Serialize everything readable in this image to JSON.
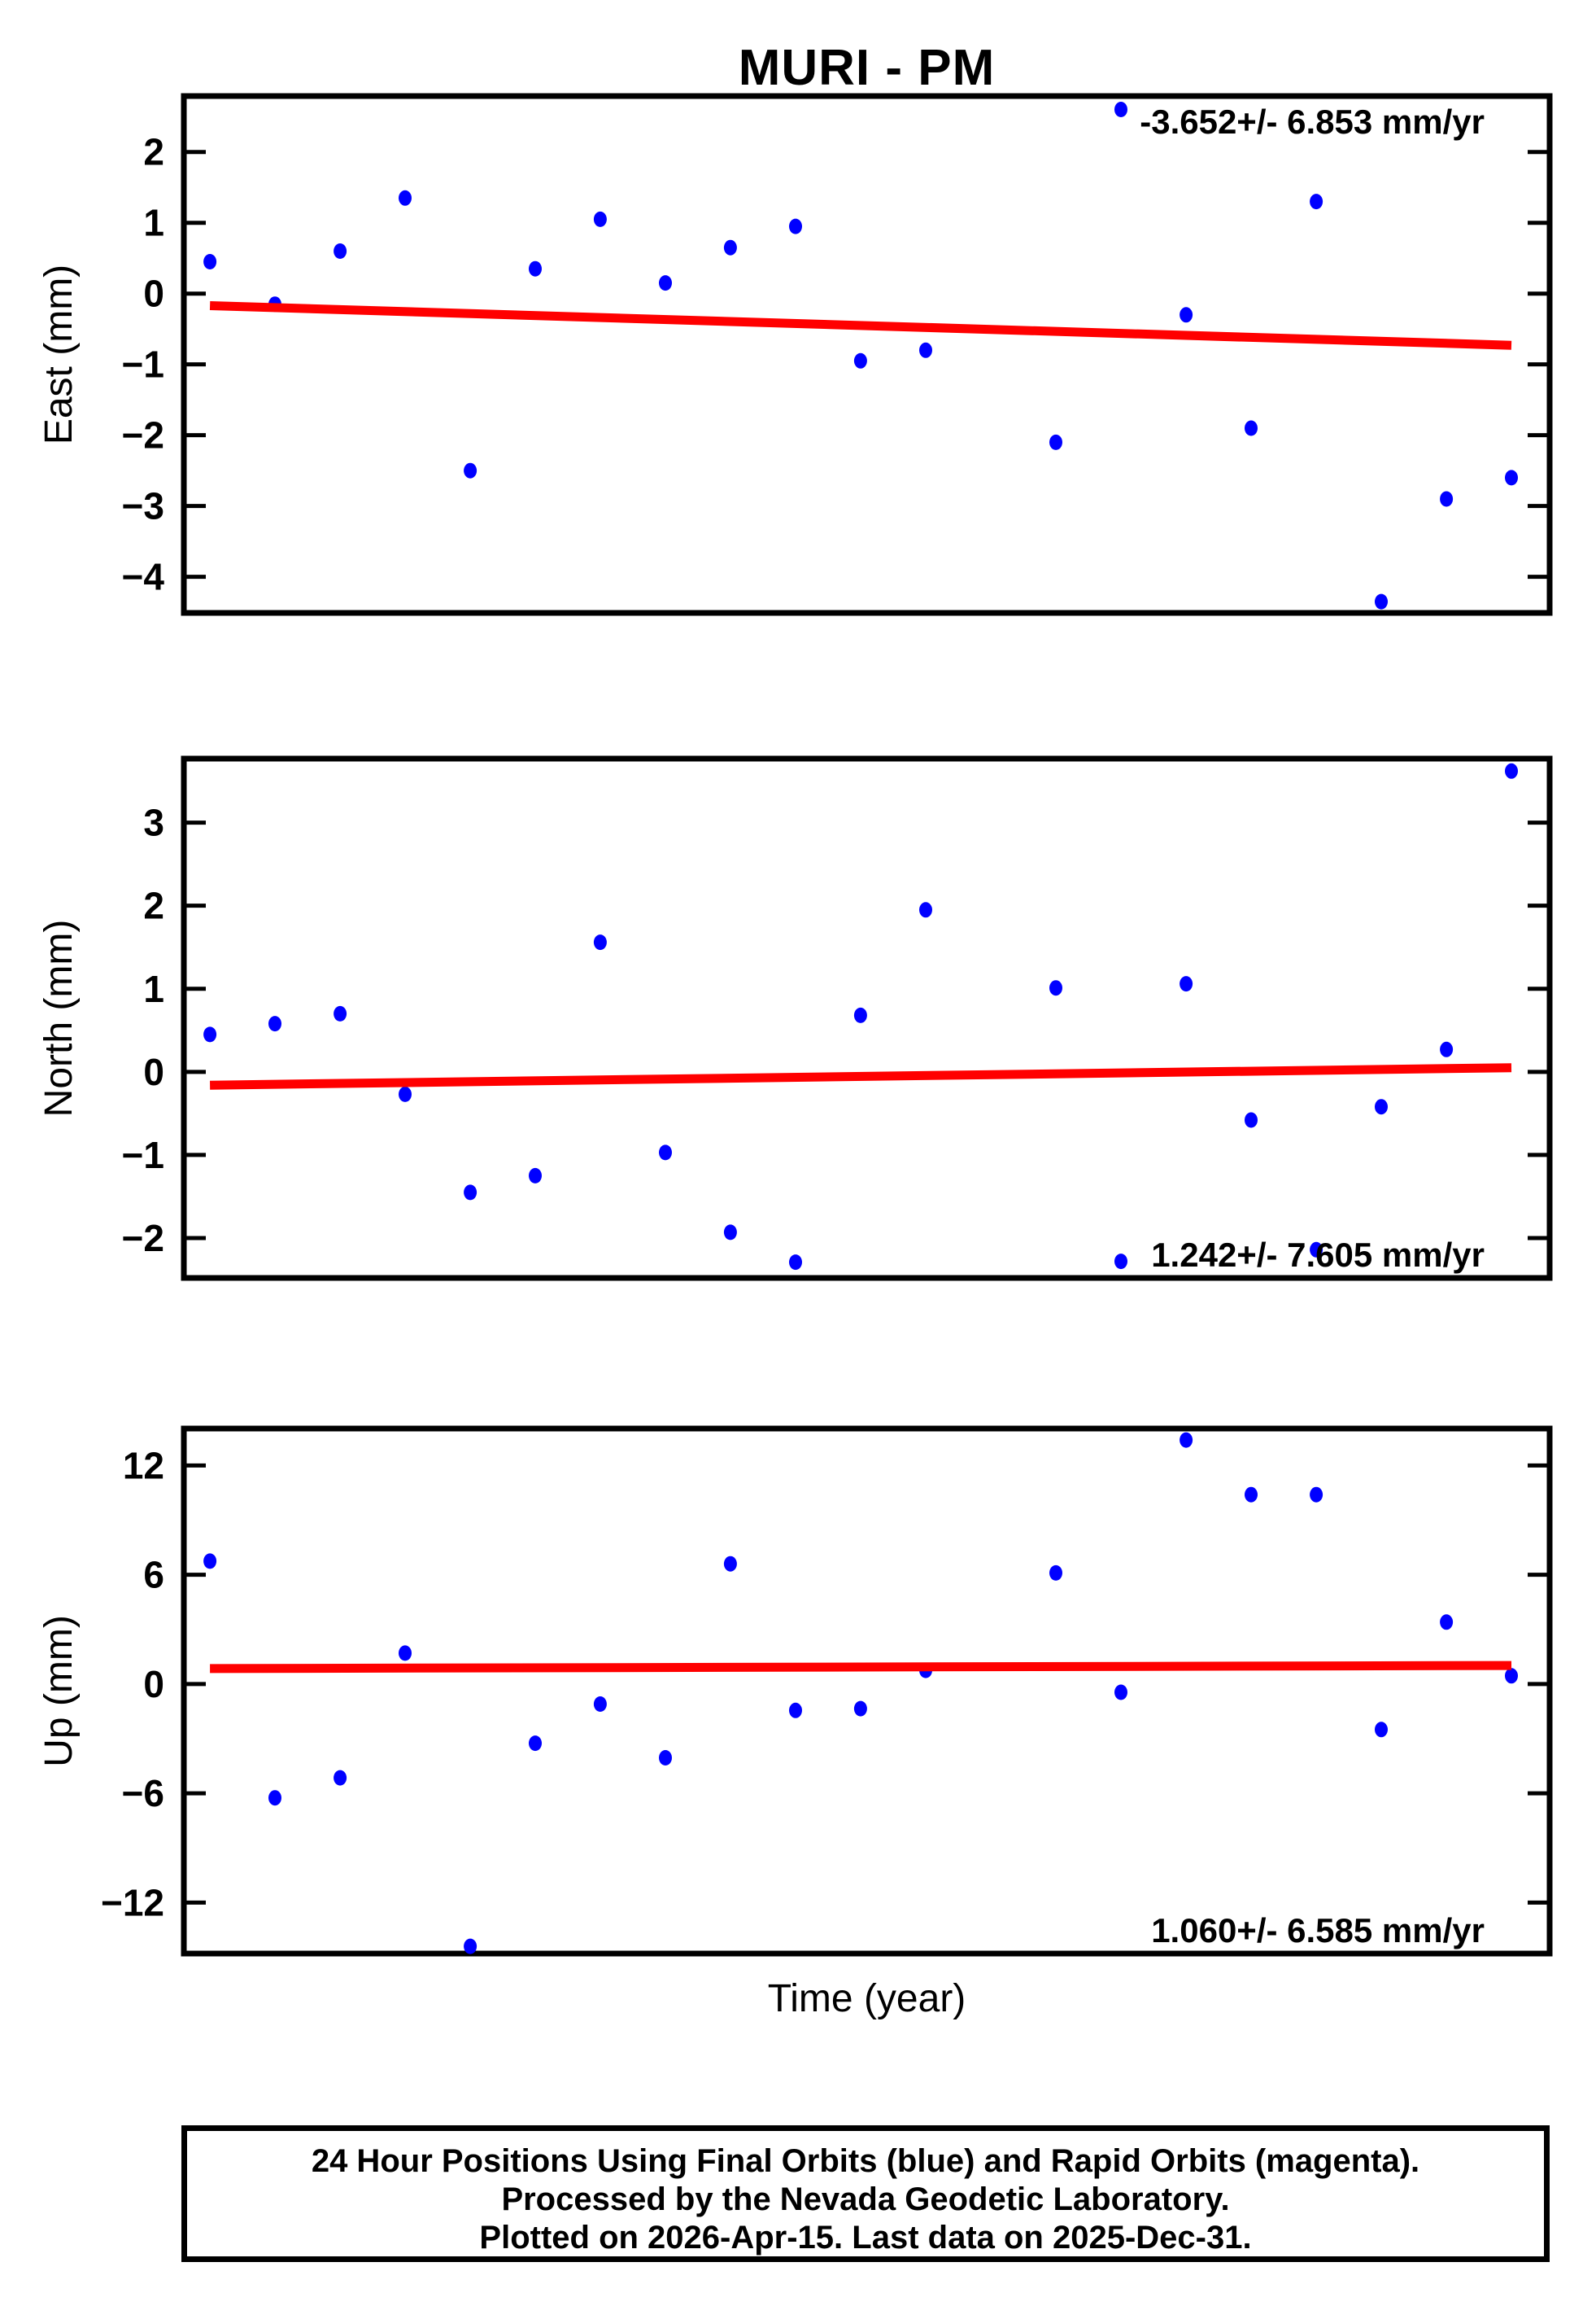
{
  "title": "MURI - PM",
  "xlabel": "Time (year)",
  "footer": {
    "line1": "24 Hour Positions Using Final Orbits (blue) and Rapid Orbits (magenta).",
    "line2": "Processed by the Nevada Geodetic Laboratory.",
    "line3": "Plotted on 2026-Apr-15. Last data on 2025-Dec-31."
  },
  "colors": {
    "point": "#0000ff",
    "trend": "#ff0000",
    "frame": "#000000"
  },
  "chart_data": [
    {
      "type": "scatter",
      "ylabel": "East (mm)",
      "annotation": "-3.652+/- 6.853 mm/yr",
      "annotation_pos": "top-right",
      "ylim": [
        -4.51,
        2.79
      ],
      "grid": false,
      "yticks": [
        {
          "v": 2,
          "label": "2"
        },
        {
          "v": 1,
          "label": "1"
        },
        {
          "v": 0,
          "label": "0"
        },
        {
          "v": -1,
          "label": "−1"
        },
        {
          "v": -2,
          "label": "−2"
        },
        {
          "v": -3,
          "label": "−3"
        },
        {
          "v": -4,
          "label": "−4"
        }
      ],
      "points": [
        [
          0.0191,
          0.45
        ],
        [
          0.0667,
          -0.15
        ],
        [
          0.1144,
          0.6
        ],
        [
          0.162,
          1.35
        ],
        [
          0.2097,
          -2.5
        ],
        [
          0.2573,
          0.35
        ],
        [
          0.3049,
          1.05
        ],
        [
          0.3526,
          0.15
        ],
        [
          0.4002,
          0.65
        ],
        [
          0.4479,
          0.95
        ],
        [
          0.4955,
          -0.95
        ],
        [
          0.5432,
          -0.8
        ],
        [
          0.6385,
          -2.1
        ],
        [
          0.6861,
          2.6
        ],
        [
          0.7338,
          -0.3
        ],
        [
          0.7814,
          -1.9
        ],
        [
          0.8291,
          1.3
        ],
        [
          0.8767,
          -4.35
        ],
        [
          0.9244,
          -2.9
        ],
        [
          0.972,
          -2.6
        ]
      ],
      "trend": [
        [
          0.0191,
          -0.17
        ],
        [
          0.972,
          -0.73
        ]
      ]
    },
    {
      "type": "scatter",
      "ylabel": "North (mm)",
      "annotation": "1.242+/- 7.605 mm/yr",
      "annotation_pos": "bottom-right",
      "ylim": [
        -2.48,
        3.77
      ],
      "grid": false,
      "yticks": [
        {
          "v": 3,
          "label": "3"
        },
        {
          "v": 2,
          "label": "2"
        },
        {
          "v": 1,
          "label": "1"
        },
        {
          "v": 0,
          "label": "0"
        },
        {
          "v": -1,
          "label": "−1"
        },
        {
          "v": -2,
          "label": "−2"
        }
      ],
      "points": [
        [
          0.0191,
          0.45
        ],
        [
          0.0667,
          0.58
        ],
        [
          0.1144,
          0.7
        ],
        [
          0.162,
          -0.27
        ],
        [
          0.2097,
          -1.45
        ],
        [
          0.2573,
          -1.25
        ],
        [
          0.3049,
          1.56
        ],
        [
          0.3526,
          -0.97
        ],
        [
          0.4002,
          -1.93
        ],
        [
          0.4479,
          -2.29
        ],
        [
          0.4955,
          0.68
        ],
        [
          0.5432,
          1.95
        ],
        [
          0.6385,
          1.01
        ],
        [
          0.6861,
          -2.28
        ],
        [
          0.7338,
          1.06
        ],
        [
          0.7814,
          -0.58
        ],
        [
          0.8291,
          -2.14
        ],
        [
          0.8767,
          -0.42
        ],
        [
          0.9244,
          0.27
        ],
        [
          0.972,
          3.62
        ]
      ],
      "trend": [
        [
          0.0191,
          -0.16
        ],
        [
          0.972,
          0.05
        ]
      ]
    },
    {
      "type": "scatter",
      "ylabel": "Up (mm)",
      "annotation": "1.060+/- 6.585 mm/yr",
      "annotation_pos": "bottom-right",
      "ylim": [
        -14.8,
        14.03
      ],
      "grid": false,
      "yticks": [
        {
          "v": 12,
          "label": "12"
        },
        {
          "v": 6,
          "label": "6"
        },
        {
          "v": 0,
          "label": "0"
        },
        {
          "v": -6,
          "label": "−6"
        },
        {
          "v": -12,
          "label": "−12"
        }
      ],
      "points": [
        [
          0.0191,
          6.75
        ],
        [
          0.0667,
          -6.25
        ],
        [
          0.1144,
          -5.15
        ],
        [
          0.162,
          1.7
        ],
        [
          0.2097,
          -14.4
        ],
        [
          0.2573,
          -3.25
        ],
        [
          0.3049,
          -1.1
        ],
        [
          0.3526,
          -4.05
        ],
        [
          0.4002,
          6.6
        ],
        [
          0.4479,
          -1.45
        ],
        [
          0.4955,
          -1.35
        ],
        [
          0.5432,
          0.75
        ],
        [
          0.6385,
          6.1
        ],
        [
          0.6861,
          -0.45
        ],
        [
          0.7338,
          13.4
        ],
        [
          0.7814,
          10.4
        ],
        [
          0.8291,
          10.4
        ],
        [
          0.8767,
          -2.5
        ],
        [
          0.9244,
          3.4
        ],
        [
          0.972,
          0.45
        ]
      ],
      "trend": [
        [
          0.0191,
          0.85
        ],
        [
          0.972,
          1.02
        ]
      ]
    }
  ]
}
